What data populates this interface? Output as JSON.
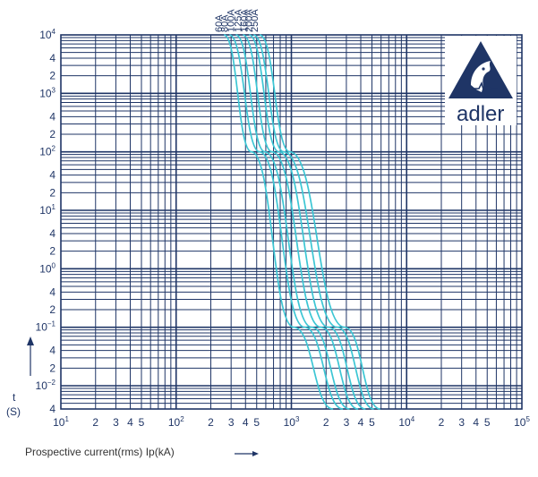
{
  "chart_data": {
    "type": "line",
    "title": "",
    "xlabel": "Prospective current(rms) Ip(kA)",
    "ylabel_top": "t",
    "ylabel_bottom": "(S)",
    "x_scale": "log",
    "y_scale": "log",
    "xlim": [
      10,
      100000
    ],
    "ylim": [
      0.004,
      10000
    ],
    "grid": true,
    "legend": "none (curve labels at top of each curve)",
    "x_tick_labels": [
      {
        "v": 10,
        "base": "10",
        "exp": "1"
      },
      {
        "v": 20,
        "base": "2"
      },
      {
        "v": 30,
        "base": "3"
      },
      {
        "v": 40,
        "base": "4"
      },
      {
        "v": 50,
        "base": "5"
      },
      {
        "v": 100,
        "base": "10",
        "exp": "2"
      },
      {
        "v": 200,
        "base": "2"
      },
      {
        "v": 300,
        "base": "3"
      },
      {
        "v": 400,
        "base": "4"
      },
      {
        "v": 500,
        "base": "5"
      },
      {
        "v": 1000,
        "base": "10",
        "exp": "3"
      },
      {
        "v": 2000,
        "base": "2"
      },
      {
        "v": 3000,
        "base": "3"
      },
      {
        "v": 4000,
        "base": "4"
      },
      {
        "v": 5000,
        "base": "5"
      },
      {
        "v": 10000,
        "base": "10",
        "exp": "4"
      },
      {
        "v": 20000,
        "base": "2"
      },
      {
        "v": 30000,
        "base": "3"
      },
      {
        "v": 40000,
        "base": "4"
      },
      {
        "v": 50000,
        "base": "5"
      },
      {
        "v": 100000,
        "base": "10",
        "exp": "5"
      }
    ],
    "y_tick_labels": [
      {
        "v": 10000,
        "base": "10",
        "exp": "4"
      },
      {
        "v": 4000,
        "base": "4"
      },
      {
        "v": 2000,
        "base": "2"
      },
      {
        "v": 1000,
        "base": "10",
        "exp": "3"
      },
      {
        "v": 400,
        "base": "4"
      },
      {
        "v": 200,
        "base": "2"
      },
      {
        "v": 100,
        "base": "10",
        "exp": "2"
      },
      {
        "v": 40,
        "base": "4"
      },
      {
        "v": 20,
        "base": "2"
      },
      {
        "v": 10,
        "base": "10",
        "exp": "1"
      },
      {
        "v": 4,
        "base": "4"
      },
      {
        "v": 2,
        "base": "2"
      },
      {
        "v": 1,
        "base": "10",
        "exp": "0"
      },
      {
        "v": 0.4,
        "base": "4"
      },
      {
        "v": 0.2,
        "base": "2"
      },
      {
        "v": 0.1,
        "base": "10",
        "exp": "−1"
      },
      {
        "v": 0.04,
        "base": "4"
      },
      {
        "v": 0.02,
        "base": "2"
      },
      {
        "v": 0.01,
        "base": "10",
        "exp": "−2"
      },
      {
        "v": 0.004,
        "base": "4"
      }
    ],
    "series": [
      {
        "name": "60A",
        "points": [
          [
            260,
            10000
          ],
          [
            450,
            100
          ],
          [
            1050,
            0.1
          ],
          [
            2300,
            0.004
          ]
        ]
      },
      {
        "name": "80A",
        "points": [
          [
            290,
            10000
          ],
          [
            530,
            100
          ],
          [
            1300,
            0.1
          ],
          [
            2800,
            0.004
          ]
        ]
      },
      {
        "name": "100A",
        "points": [
          [
            330,
            10000
          ],
          [
            590,
            100
          ],
          [
            1500,
            0.1
          ],
          [
            3200,
            0.004
          ]
        ]
      },
      {
        "name": "125A",
        "points": [
          [
            380,
            10000
          ],
          [
            680,
            100
          ],
          [
            1800,
            0.1
          ],
          [
            3800,
            0.004
          ]
        ]
      },
      {
        "name": "160A",
        "points": [
          [
            430,
            10000
          ],
          [
            780,
            100
          ],
          [
            2100,
            0.1
          ],
          [
            4400,
            0.004
          ]
        ]
      },
      {
        "name": "200A",
        "points": [
          [
            470,
            10000
          ],
          [
            860,
            100
          ],
          [
            2500,
            0.1
          ],
          [
            5200,
            0.004
          ]
        ]
      },
      {
        "name": "250A",
        "points": [
          [
            530,
            10000
          ],
          [
            970,
            100
          ],
          [
            2900,
            0.1
          ],
          [
            5900,
            0.004
          ]
        ]
      }
    ],
    "colors": {
      "grid": "#1f3566",
      "curve": "#3cc6d4"
    }
  },
  "logo": {
    "text": "adler",
    "color": "#1f3566"
  }
}
